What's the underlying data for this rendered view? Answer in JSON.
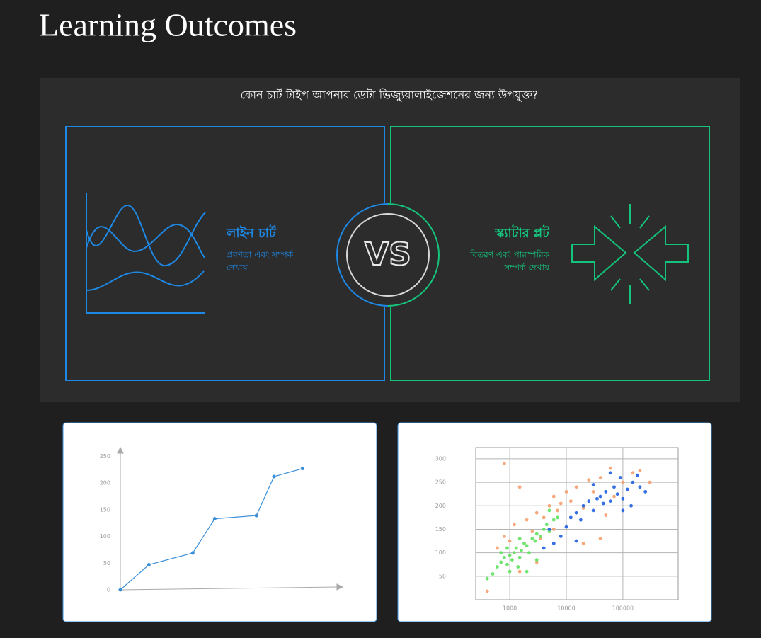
{
  "header": {
    "title": "Learning Outcomes"
  },
  "infographic": {
    "question": "কোন চার্ট টাইপ আপনার ডেটা ভিজ্যুয়ালাইজেশনের জন্য উপযুক্ত?",
    "vs": "VS",
    "left": {
      "title": "লাইন চার্ট",
      "description": [
        "প্রবণতা এবং সম্পর্ক",
        "দেখায়"
      ]
    },
    "right": {
      "title": "স্ক্যাটার প্লট",
      "description": [
        "বিতরণ এবং পারস্পরিক",
        "সম্পর্ক দেখায়"
      ]
    }
  },
  "chart_data": [
    {
      "type": "line",
      "color": "#3b8fd9",
      "x": [
        0,
        13,
        33,
        43,
        62,
        70,
        83
      ],
      "values": [
        0,
        47,
        69,
        133,
        139,
        212,
        227
      ],
      "xlim": [
        0,
        100
      ],
      "ylim": [
        0,
        265
      ],
      "yticks": [
        0,
        50,
        100,
        150,
        200,
        250
      ]
    },
    {
      "type": "scatter",
      "log_x": true,
      "grid": true,
      "xlim": [
        250,
        950000
      ],
      "ylim": [
        0,
        324
      ],
      "xticks": [
        1000,
        10000,
        100000
      ],
      "yticks": [
        50,
        100,
        150,
        200,
        250,
        300
      ],
      "series": [
        {
          "color": "#f4a06c",
          "x": [
            400,
            600,
            800,
            1000,
            1200,
            1500,
            2000,
            2500,
            3000,
            3500,
            4000,
            5000,
            6000,
            7000,
            8000,
            10000,
            12000,
            15000,
            20000,
            25000,
            30000,
            40000,
            50000,
            60000,
            100000,
            150000,
            200000,
            300000,
            800,
            1500,
            3000,
            6000,
            20000,
            40000,
            70000
          ],
          "values": [
            18,
            110,
            135,
            125,
            160,
            240,
            170,
            145,
            185,
            130,
            175,
            200,
            220,
            190,
            205,
            230,
            210,
            240,
            195,
            255,
            230,
            260,
            180,
            280,
            250,
            270,
            275,
            250,
            290,
            60,
            80,
            150,
            120,
            130,
            220
          ]
        },
        {
          "color": "#5fe25f",
          "x": [
            500,
            600,
            700,
            800,
            900,
            1000,
            1100,
            1200,
            1300,
            1500,
            1600,
            1800,
            2000,
            2200,
            2500,
            2800,
            3000,
            3500,
            4000,
            4500,
            5000,
            6000,
            7000,
            400,
            1400,
            2000,
            900,
            3000,
            700,
            1000,
            5000,
            1500
          ],
          "values": [
            55,
            70,
            80,
            90,
            75,
            95,
            85,
            100,
            110,
            90,
            105,
            120,
            115,
            100,
            130,
            125,
            140,
            135,
            150,
            160,
            145,
            170,
            175,
            45,
            70,
            60,
            110,
            85,
            100,
            60,
            190,
            130
          ]
        },
        {
          "color": "#1f5fe0",
          "x": [
            5000,
            6000,
            8000,
            10000,
            12000,
            15000,
            18000,
            20000,
            25000,
            30000,
            35000,
            40000,
            45000,
            50000,
            60000,
            70000,
            80000,
            90000,
            100000,
            120000,
            140000,
            150000,
            180000,
            200000,
            250000,
            60000,
            30000,
            15000,
            4000,
            100000
          ],
          "values": [
            150,
            120,
            135,
            155,
            175,
            185,
            170,
            200,
            210,
            190,
            215,
            220,
            205,
            230,
            210,
            240,
            225,
            260,
            215,
            235,
            200,
            250,
            265,
            240,
            230,
            270,
            245,
            125,
            110,
            190
          ]
        }
      ]
    }
  ]
}
